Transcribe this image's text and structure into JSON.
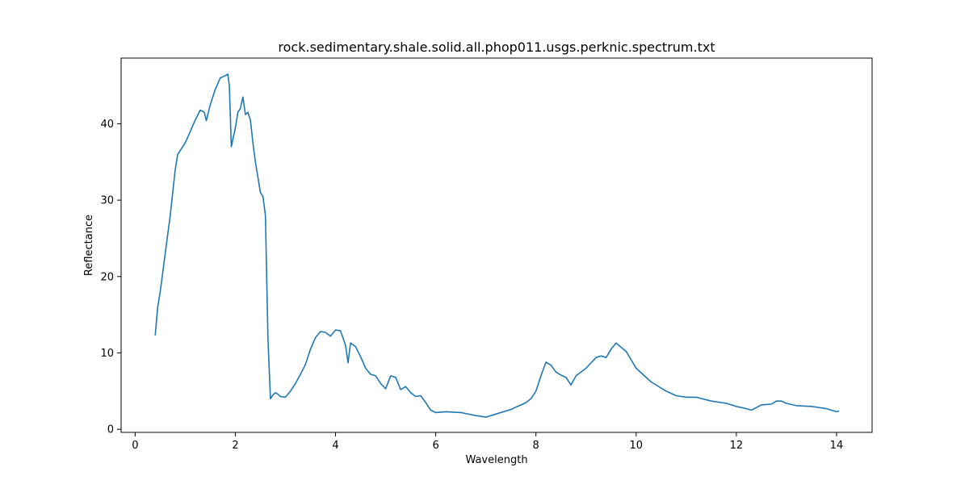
{
  "chart_data": {
    "type": "line",
    "title": "rock.sedimentary.shale.solid.all.phop011.usgs.perknic.spectrum.txt",
    "xlabel": "Wavelength",
    "ylabel": "Reflectance",
    "xlim": [
      -0.28,
      14.71
    ],
    "ylim": [
      -0.4,
      48.6
    ],
    "xticks": [
      0,
      2,
      4,
      6,
      8,
      10,
      12,
      14
    ],
    "yticks": [
      0,
      10,
      20,
      30,
      40
    ],
    "grid": false,
    "legend": "none",
    "series": [
      {
        "color": "#1f77b4",
        "x": [
          0.4,
          0.45,
          0.5,
          0.6,
          0.7,
          0.8,
          0.85,
          0.9,
          1.0,
          1.1,
          1.2,
          1.3,
          1.38,
          1.42,
          1.5,
          1.6,
          1.7,
          1.8,
          1.85,
          1.88,
          1.92,
          2.0,
          2.05,
          2.1,
          2.15,
          2.2,
          2.25,
          2.3,
          2.35,
          2.4,
          2.5,
          2.55,
          2.6,
          2.65,
          2.7,
          2.75,
          2.8,
          2.85,
          2.9,
          3.0,
          3.1,
          3.2,
          3.3,
          3.4,
          3.5,
          3.6,
          3.7,
          3.8,
          3.9,
          4.0,
          4.1,
          4.2,
          4.25,
          4.3,
          4.4,
          4.5,
          4.6,
          4.7,
          4.8,
          4.9,
          5.0,
          5.1,
          5.2,
          5.3,
          5.4,
          5.5,
          5.6,
          5.7,
          5.8,
          5.9,
          6.0,
          6.2,
          6.5,
          6.8,
          7.0,
          7.2,
          7.5,
          7.8,
          7.9,
          8.0,
          8.1,
          8.2,
          8.3,
          8.4,
          8.5,
          8.6,
          8.7,
          8.8,
          9.0,
          9.2,
          9.3,
          9.4,
          9.5,
          9.6,
          9.8,
          10.0,
          10.3,
          10.6,
          10.8,
          11.0,
          11.2,
          11.5,
          11.8,
          12.0,
          12.2,
          12.3,
          12.5,
          12.7,
          12.8,
          12.9,
          13.0,
          13.2,
          13.5,
          13.8,
          13.9,
          14.0,
          14.05
        ],
        "y": [
          12.3,
          16,
          18,
          23,
          28,
          34,
          36,
          36.5,
          37.5,
          39,
          40.5,
          41.8,
          41.5,
          40.4,
          42.5,
          44.5,
          46,
          46.3,
          46.5,
          45,
          37,
          39.5,
          41.5,
          42,
          43.5,
          41.2,
          41.5,
          40.5,
          37.5,
          35,
          31,
          30.5,
          28,
          12,
          4,
          4.5,
          4.8,
          4.6,
          4.3,
          4.2,
          5,
          6,
          7.2,
          8.5,
          10.5,
          12,
          12.8,
          12.7,
          12.2,
          13,
          12.9,
          11,
          8.7,
          11.3,
          10.8,
          9.5,
          8,
          7.2,
          7,
          6,
          5.3,
          7,
          6.8,
          5.2,
          5.6,
          4.8,
          4.3,
          4.4,
          3.5,
          2.5,
          2.2,
          2.3,
          2.2,
          1.8,
          1.6,
          2,
          2.6,
          3.5,
          4,
          5,
          7,
          8.8,
          8.4,
          7.5,
          7.1,
          6.8,
          5.8,
          7,
          8,
          9.4,
          9.6,
          9.4,
          10.5,
          11.3,
          10.2,
          8,
          6.2,
          5,
          4.4,
          4.2,
          4.2,
          3.7,
          3.4,
          3,
          2.7,
          2.5,
          3.2,
          3.3,
          3.7,
          3.7,
          3.4,
          3.1,
          3,
          2.7,
          2.5,
          2.3,
          2.4
        ]
      }
    ]
  }
}
